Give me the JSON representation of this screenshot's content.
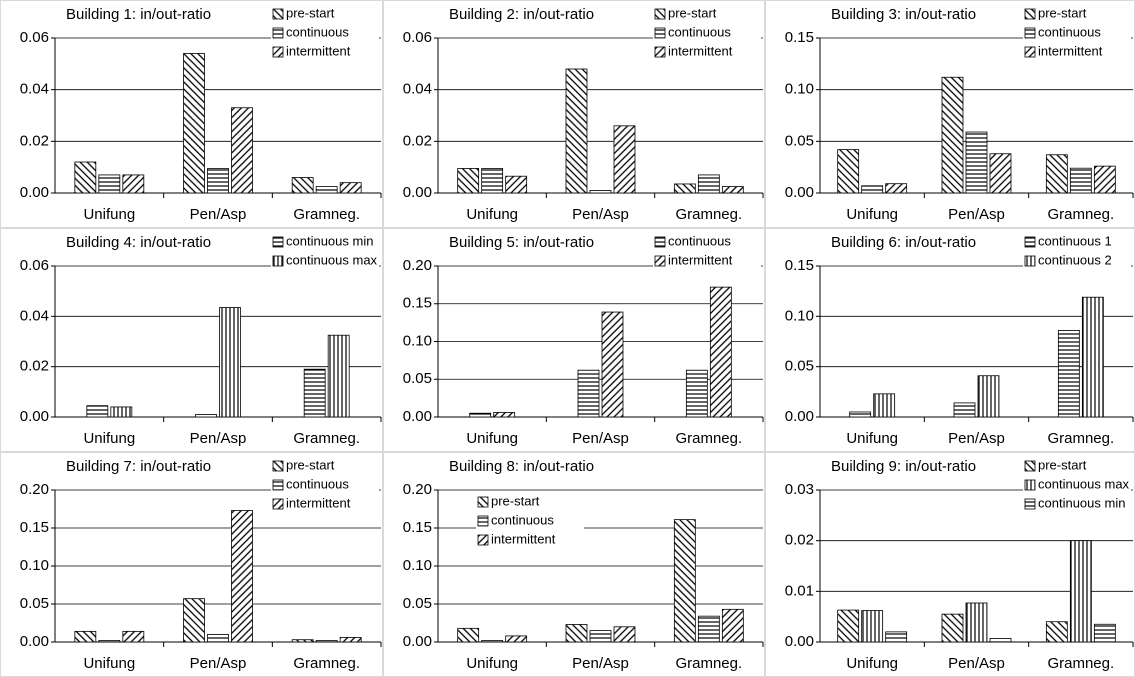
{
  "chart_data": [
    {
      "type": "bar",
      "title": "Building 1: in/out-ratio",
      "categories": [
        "Unifung",
        "Pen/Asp",
        "Gramneg."
      ],
      "legend": "top right",
      "grid": true,
      "ylim": [
        0,
        0.06
      ],
      "yticks": [
        {
          "value": 0,
          "label": "0.00"
        },
        {
          "value": 0.02,
          "label": "0.02"
        },
        {
          "value": 0.04,
          "label": "0.04"
        },
        {
          "value": 0.06,
          "label": "0.06"
        }
      ],
      "series": [
        {
          "name": "pre-start",
          "pattern": "backslash",
          "values": [
            0.012,
            0.054,
            0.006
          ]
        },
        {
          "name": "continuous",
          "pattern": "horizontal",
          "values": [
            0.007,
            0.0095,
            0.0025
          ]
        },
        {
          "name": "intermittent",
          "pattern": "slash",
          "values": [
            0.007,
            0.033,
            0.004
          ]
        }
      ]
    },
    {
      "type": "bar",
      "title": "Building 2: in/out-ratio",
      "categories": [
        "Unifung",
        "Pen/Asp",
        "Gramneg."
      ],
      "legend": "top right",
      "grid": true,
      "ylim": [
        0,
        0.06
      ],
      "yticks": [
        {
          "value": 0,
          "label": "0.00"
        },
        {
          "value": 0.02,
          "label": "0.02"
        },
        {
          "value": 0.04,
          "label": "0.04"
        },
        {
          "value": 0.06,
          "label": "0.06"
        }
      ],
      "series": [
        {
          "name": "pre-start",
          "pattern": "backslash",
          "values": [
            0.0095,
            0.048,
            0.0035
          ]
        },
        {
          "name": "continuous",
          "pattern": "horizontal",
          "values": [
            0.0095,
            0.001,
            0.007
          ]
        },
        {
          "name": "intermittent",
          "pattern": "slash",
          "values": [
            0.0065,
            0.026,
            0.0025
          ]
        }
      ]
    },
    {
      "type": "bar",
      "title": "Building 3: in/out-ratio",
      "categories": [
        "Unifung",
        "Pen/Asp",
        "Gramneg."
      ],
      "legend": "top right",
      "grid": true,
      "ylim": [
        0,
        0.15
      ],
      "yticks": [
        {
          "value": 0,
          "label": "0.00"
        },
        {
          "value": 0.05,
          "label": "0.05"
        },
        {
          "value": 0.1,
          "label": "0.10"
        },
        {
          "value": 0.15,
          "label": "0.15"
        }
      ],
      "series": [
        {
          "name": "pre-start",
          "pattern": "backslash",
          "values": [
            0.042,
            0.112,
            0.037
          ]
        },
        {
          "name": "continuous",
          "pattern": "horizontal",
          "values": [
            0.007,
            0.059,
            0.024
          ]
        },
        {
          "name": "intermittent",
          "pattern": "slash",
          "values": [
            0.009,
            0.038,
            0.026
          ]
        }
      ]
    },
    {
      "type": "bar",
      "title": "Building 4: in/out-ratio",
      "categories": [
        "Unifung",
        "Pen/Asp",
        "Gramneg."
      ],
      "legend": "top right",
      "grid": true,
      "ylim": [
        0,
        0.06
      ],
      "yticks": [
        {
          "value": 0,
          "label": "0.00"
        },
        {
          "value": 0.02,
          "label": "0.02"
        },
        {
          "value": 0.04,
          "label": "0.04"
        },
        {
          "value": 0.06,
          "label": "0.06"
        }
      ],
      "series": [
        {
          "name": "continuous min",
          "pattern": "horizontal",
          "values": [
            0.0045,
            0.001,
            0.019
          ]
        },
        {
          "name": "continuous max",
          "pattern": "vertical",
          "values": [
            0.004,
            0.0435,
            0.0325
          ]
        }
      ]
    },
    {
      "type": "bar",
      "title": "Building 5: in/out-ratio",
      "categories": [
        "Unifung",
        "Pen/Asp",
        "Gramneg."
      ],
      "legend": "top right",
      "grid": true,
      "ylim": [
        0,
        0.2
      ],
      "yticks": [
        {
          "value": 0,
          "label": "0.00"
        },
        {
          "value": 0.05,
          "label": "0.05"
        },
        {
          "value": 0.1,
          "label": "0.10"
        },
        {
          "value": 0.15,
          "label": "0.15"
        },
        {
          "value": 0.2,
          "label": "0.20"
        }
      ],
      "series": [
        {
          "name": "continuous",
          "pattern": "horizontal",
          "values": [
            0.005,
            0.062,
            0.062
          ]
        },
        {
          "name": "intermittent",
          "pattern": "slash",
          "values": [
            0.006,
            0.139,
            0.172
          ]
        }
      ]
    },
    {
      "type": "bar",
      "title": "Building 6: in/out-ratio",
      "categories": [
        "Unifung",
        "Pen/Asp",
        "Gramneg."
      ],
      "legend": "top right",
      "grid": true,
      "ylim": [
        0,
        0.15
      ],
      "yticks": [
        {
          "value": 0,
          "label": "0.00"
        },
        {
          "value": 0.05,
          "label": "0.05"
        },
        {
          "value": 0.1,
          "label": "0.10"
        },
        {
          "value": 0.15,
          "label": "0.15"
        }
      ],
      "series": [
        {
          "name": "continuous 1",
          "pattern": "horizontal",
          "values": [
            0.005,
            0.014,
            0.086
          ]
        },
        {
          "name": "continuous 2",
          "pattern": "vertical",
          "values": [
            0.023,
            0.041,
            0.119
          ]
        }
      ]
    },
    {
      "type": "bar",
      "title": "Building 7: in/out-ratio",
      "categories": [
        "Unifung",
        "Pen/Asp",
        "Gramneg."
      ],
      "legend": "top right",
      "grid": true,
      "ylim": [
        0,
        0.2
      ],
      "yticks": [
        {
          "value": 0,
          "label": "0.00"
        },
        {
          "value": 0.05,
          "label": "0.05"
        },
        {
          "value": 0.1,
          "label": "0.10"
        },
        {
          "value": 0.15,
          "label": "0.15"
        },
        {
          "value": 0.2,
          "label": "0.20"
        }
      ],
      "series": [
        {
          "name": "pre-start",
          "pattern": "backslash",
          "values": [
            0.014,
            0.057,
            0.003
          ]
        },
        {
          "name": "continuous",
          "pattern": "horizontal",
          "values": [
            0.002,
            0.01,
            0.002
          ]
        },
        {
          "name": "intermittent",
          "pattern": "slash",
          "values": [
            0.014,
            0.173,
            0.006
          ]
        }
      ]
    },
    {
      "type": "bar",
      "title": "Building 8: in/out-ratio",
      "categories": [
        "Unifung",
        "Pen/Asp",
        "Gramneg."
      ],
      "legend": "top left",
      "grid": true,
      "ylim": [
        0,
        0.2
      ],
      "yticks": [
        {
          "value": 0,
          "label": "0.00"
        },
        {
          "value": 0.05,
          "label": "0.05"
        },
        {
          "value": 0.1,
          "label": "0.10"
        },
        {
          "value": 0.15,
          "label": "0.15"
        },
        {
          "value": 0.2,
          "label": "0.20"
        }
      ],
      "series": [
        {
          "name": "pre-start",
          "pattern": "backslash",
          "values": [
            0.018,
            0.023,
            0.161
          ]
        },
        {
          "name": "continuous",
          "pattern": "horizontal",
          "values": [
            0.002,
            0.015,
            0.034
          ]
        },
        {
          "name": "intermittent",
          "pattern": "slash",
          "values": [
            0.008,
            0.02,
            0.043
          ]
        }
      ]
    },
    {
      "type": "bar",
      "title": "Building 9: in/out-ratio",
      "categories": [
        "Unifung",
        "Pen/Asp",
        "Gramneg."
      ],
      "legend": "top right",
      "grid": true,
      "ylim": [
        0,
        0.03
      ],
      "yticks": [
        {
          "value": 0,
          "label": "0.00"
        },
        {
          "value": 0.01,
          "label": "0.01"
        },
        {
          "value": 0.02,
          "label": "0.02"
        },
        {
          "value": 0.03,
          "label": "0.03"
        }
      ],
      "series": [
        {
          "name": "pre-start",
          "pattern": "backslash",
          "values": [
            0.0063,
            0.0055,
            0.004
          ]
        },
        {
          "name": "continuous max",
          "pattern": "vertical",
          "values": [
            0.0062,
            0.0077,
            0.02
          ]
        },
        {
          "name": "continuous min",
          "pattern": "horizontal",
          "values": [
            0.002,
            0.0007,
            0.0035
          ]
        }
      ]
    }
  ]
}
